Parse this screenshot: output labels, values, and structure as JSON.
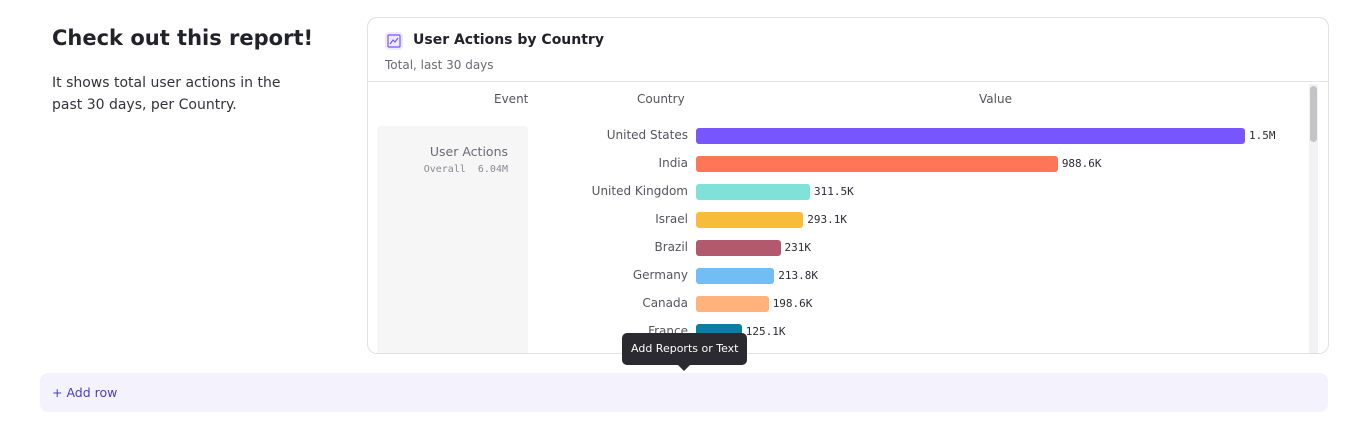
{
  "intro": {
    "title": "Check out this report!",
    "text": "It shows total user actions in the past 30 days, per Country."
  },
  "report": {
    "icon": "line-chart-icon",
    "title": "User Actions by Country",
    "subtitle": "Total, last 30 days",
    "headers": {
      "event": "Event",
      "country": "Country",
      "value": "Value"
    },
    "event": {
      "name": "User Actions",
      "overall_label": "Overall",
      "overall_value": "6.04M"
    }
  },
  "chart_data": {
    "type": "bar",
    "orientation": "horizontal",
    "categories": [
      "United States",
      "India",
      "United Kingdom",
      "Israel",
      "Brazil",
      "Germany",
      "Canada",
      "France"
    ],
    "values": [
      1500000,
      988600,
      311500,
      293100,
      231000,
      213800,
      198600,
      125100
    ],
    "labels": [
      "1.5M",
      "988.6K",
      "311.5K",
      "293.1K",
      "231K",
      "213.8K",
      "198.6K",
      "125.1K"
    ],
    "colors": [
      "#7856ff",
      "#ff7557",
      "#80e1d9",
      "#f8bc3b",
      "#b2596e",
      "#72bef4",
      "#ffb27a",
      "#0d7ea0"
    ]
  },
  "add_row": {
    "label": "+ Add row"
  },
  "tooltip": {
    "text": "Add Reports or Text"
  }
}
